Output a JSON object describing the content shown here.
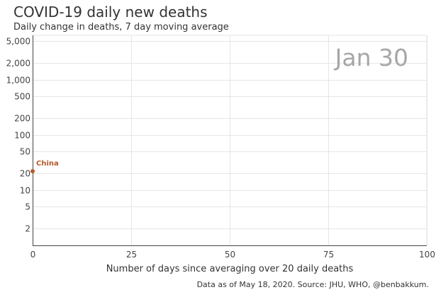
{
  "header": {
    "title": "COVID-19 daily new deaths",
    "subtitle": "Daily change in deaths, 7 day moving average"
  },
  "footer": {
    "source": "Data as of May 18, 2020. Source: JHU, WHO, @benbakkum."
  },
  "chart_data": {
    "type": "scatter",
    "title": "COVID-19 daily new deaths",
    "subtitle": "Daily change in deaths, 7 day moving average",
    "xlabel": "Number of days since averaging over 20 daily deaths",
    "ylabel": "",
    "date_label": "Jan 30",
    "x_range": [
      0,
      100
    ],
    "y_range": [
      1,
      5000
    ],
    "y_scale": "log",
    "x_ticks": [
      0,
      25,
      50,
      75,
      100
    ],
    "x_tick_labels": [
      "0",
      "25",
      "50",
      "75",
      "100"
    ],
    "y_ticks": [
      2,
      5,
      10,
      20,
      50,
      100,
      200,
      500,
      1000,
      2000,
      5000
    ],
    "y_tick_labels": [
      "2",
      "5",
      "10",
      "20",
      "50",
      "100",
      "200",
      "500",
      "1,000",
      "2,000",
      "5,000"
    ],
    "grid": true,
    "series": [
      {
        "name": "China",
        "color": "#b5592b",
        "points": [
          {
            "x": 0,
            "y": 22
          }
        ]
      }
    ]
  }
}
